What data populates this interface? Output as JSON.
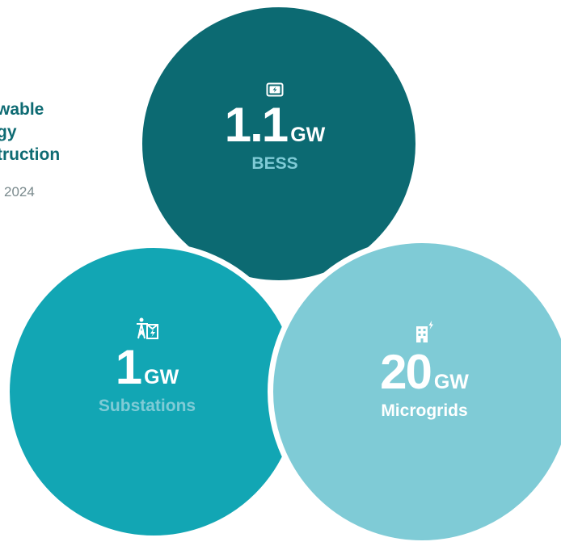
{
  "headline": {
    "lines": [
      "wable",
      "gy",
      "truction"
    ]
  },
  "subtitle": "2024",
  "stats": {
    "bess": {
      "value": "1.1",
      "unit": "GW",
      "label": "BESS",
      "icon": "battery-bolt-icon"
    },
    "sub": {
      "value": "1",
      "unit": "GW",
      "label": "Substations",
      "icon": "substation-icon"
    },
    "micro": {
      "value": "20",
      "unit": "GW",
      "label": "Microgrids",
      "icon": "building-bolt-icon"
    }
  },
  "colors": {
    "dark_teal": "#0c6a72",
    "teal": "#12a6b4",
    "light_teal": "#7fcbd6",
    "heading": "#0e6b73",
    "muted": "#7a8a8d"
  }
}
